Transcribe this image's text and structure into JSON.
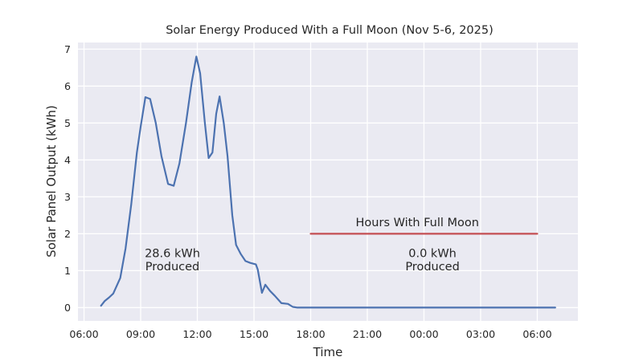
{
  "figure": {
    "background_color": "#ffffff",
    "plot_background_color": "#eaeaf2",
    "grid_color": "#ffffff",
    "text_color": "#262626"
  },
  "chart_data": {
    "type": "line",
    "title": "Solar Energy Produced With a Full Moon (Nov 5-6, 2025)",
    "xlabel": "Time",
    "ylabel": "Solar Panel Output (kWh)",
    "x_unit_note": "hours since midnight Nov 5; values >= 24 are Nov 6",
    "xlim": [
      5.68,
      32.15
    ],
    "ylim": [
      -0.36,
      7.18
    ],
    "grid": true,
    "legend": "none",
    "x_ticks": [
      {
        "value": 6,
        "label": "06:00"
      },
      {
        "value": 9,
        "label": "09:00"
      },
      {
        "value": 12,
        "label": "12:00"
      },
      {
        "value": 15,
        "label": "15:00"
      },
      {
        "value": 18,
        "label": "18:00"
      },
      {
        "value": 21,
        "label": "21:00"
      },
      {
        "value": 24,
        "label": "00:00"
      },
      {
        "value": 27,
        "label": "03:00"
      },
      {
        "value": 30,
        "label": "06:00"
      }
    ],
    "y_ticks": [
      {
        "value": 0,
        "label": "0"
      },
      {
        "value": 1,
        "label": "1"
      },
      {
        "value": 2,
        "label": "2"
      },
      {
        "value": 3,
        "label": "3"
      },
      {
        "value": 4,
        "label": "4"
      },
      {
        "value": 5,
        "label": "5"
      },
      {
        "value": 6,
        "label": "6"
      },
      {
        "value": 7,
        "label": "7"
      }
    ],
    "series": [
      {
        "name": "solar-panel-output",
        "color": "#4c72b0",
        "line_width": 2.2,
        "points": [
          [
            6.9,
            0.05
          ],
          [
            7.1,
            0.18
          ],
          [
            7.32,
            0.27
          ],
          [
            7.55,
            0.38
          ],
          [
            7.92,
            0.8
          ],
          [
            8.2,
            1.6
          ],
          [
            8.5,
            2.8
          ],
          [
            8.8,
            4.2
          ],
          [
            9.0,
            4.9
          ],
          [
            9.25,
            5.7
          ],
          [
            9.5,
            5.65
          ],
          [
            9.8,
            5.0
          ],
          [
            10.1,
            4.1
          ],
          [
            10.45,
            3.35
          ],
          [
            10.75,
            3.3
          ],
          [
            11.05,
            3.9
          ],
          [
            11.4,
            5.0
          ],
          [
            11.7,
            6.1
          ],
          [
            11.95,
            6.8
          ],
          [
            12.15,
            6.35
          ],
          [
            12.4,
            5.0
          ],
          [
            12.6,
            4.05
          ],
          [
            12.8,
            4.2
          ],
          [
            13.0,
            5.25
          ],
          [
            13.18,
            5.72
          ],
          [
            13.4,
            5.0
          ],
          [
            13.6,
            4.1
          ],
          [
            13.85,
            2.5
          ],
          [
            14.05,
            1.7
          ],
          [
            14.3,
            1.45
          ],
          [
            14.55,
            1.26
          ],
          [
            14.8,
            1.21
          ],
          [
            15.1,
            1.17
          ],
          [
            15.2,
            1.03
          ],
          [
            15.42,
            0.4
          ],
          [
            15.6,
            0.62
          ],
          [
            15.85,
            0.45
          ],
          [
            16.1,
            0.32
          ],
          [
            16.45,
            0.12
          ],
          [
            16.8,
            0.1
          ],
          [
            17.05,
            0.02
          ],
          [
            17.3,
            0.0
          ],
          [
            18.0,
            0.0
          ],
          [
            19.0,
            0.0
          ],
          [
            20.0,
            0.0
          ],
          [
            21.0,
            0.0
          ],
          [
            22.0,
            0.0
          ],
          [
            23.0,
            0.0
          ],
          [
            24.0,
            0.0
          ],
          [
            25.0,
            0.0
          ],
          [
            26.0,
            0.0
          ],
          [
            27.0,
            0.0
          ],
          [
            28.0,
            0.0
          ],
          [
            29.0,
            0.0
          ],
          [
            30.0,
            0.0
          ],
          [
            30.95,
            0.0
          ]
        ]
      },
      {
        "name": "hours-with-full-moon",
        "color": "#c44e52",
        "line_width": 2.2,
        "points": [
          [
            18.0,
            2.0
          ],
          [
            30.0,
            2.0
          ]
        ]
      }
    ],
    "annotations": [
      {
        "name": "moon-hours-label",
        "lines": [
          "Hours With Full Moon"
        ],
        "x": 23.65,
        "y": 2.31,
        "color": "#262626"
      },
      {
        "name": "day-total-label",
        "lines": [
          "28.6 kWh",
          "Produced"
        ],
        "x": 10.68,
        "y": 1.48,
        "color": "#262626"
      },
      {
        "name": "night-total-label",
        "lines": [
          "0.0 kWh",
          "Produced"
        ],
        "x": 24.45,
        "y": 1.48,
        "color": "#262626"
      }
    ]
  }
}
